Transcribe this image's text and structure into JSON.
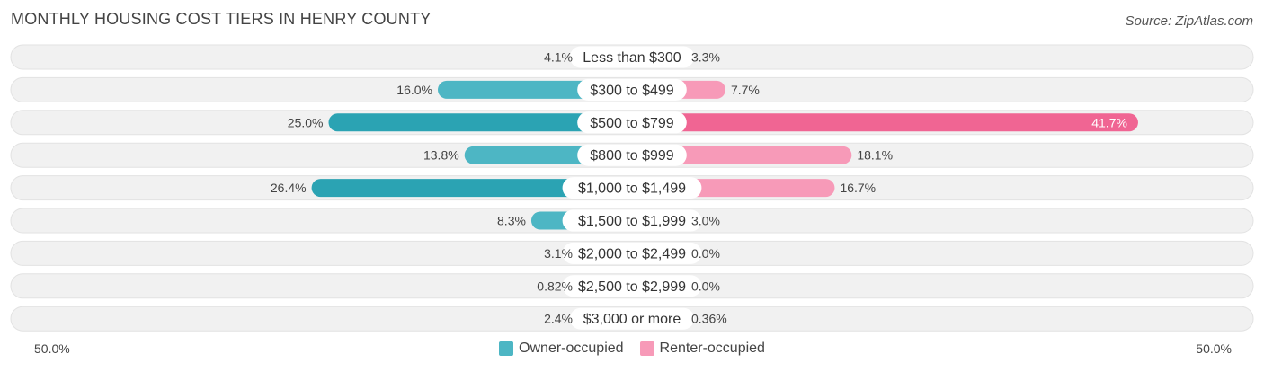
{
  "header": {
    "title": "MONTHLY HOUSING COST TIERS IN HENRY COUNTY",
    "source": "Source: ZipAtlas.com"
  },
  "axis": {
    "left_label": "50.0%",
    "right_label": "50.0%"
  },
  "legend": {
    "owner_label": "Owner-occupied",
    "renter_label": "Renter-occupied"
  },
  "colors": {
    "owner": "#4db6c4",
    "owner_strong": "#2ba3b3",
    "renter": "#f79ab8",
    "renter_strong": "#f06593",
    "track": "#f1f1f1"
  },
  "chart_data": {
    "type": "bar",
    "orientation": "diverging-horizontal",
    "title": "MONTHLY HOUSING COST TIERS IN HENRY COUNTY",
    "xlim": [
      -50,
      50
    ],
    "categories": [
      "Less than $300",
      "$300 to $499",
      "$500 to $799",
      "$800 to $999",
      "$1,000 to $1,499",
      "$1,500 to $1,999",
      "$2,000 to $2,499",
      "$2,500 to $2,999",
      "$3,000 or more"
    ],
    "series": [
      {
        "name": "Owner-occupied",
        "values": [
          4.1,
          16.0,
          25.0,
          13.8,
          26.4,
          8.3,
          3.1,
          0.82,
          2.4
        ],
        "labels": [
          "4.1%",
          "16.0%",
          "25.0%",
          "13.8%",
          "26.4%",
          "8.3%",
          "3.1%",
          "0.82%",
          "2.4%"
        ]
      },
      {
        "name": "Renter-occupied",
        "values": [
          3.3,
          7.7,
          41.7,
          18.1,
          16.7,
          3.0,
          0.0,
          0.0,
          0.36
        ],
        "labels": [
          "3.3%",
          "7.7%",
          "41.7%",
          "18.1%",
          "16.7%",
          "3.0%",
          "0.0%",
          "0.0%",
          "0.36%"
        ]
      }
    ],
    "legend_position": "bottom-center"
  }
}
